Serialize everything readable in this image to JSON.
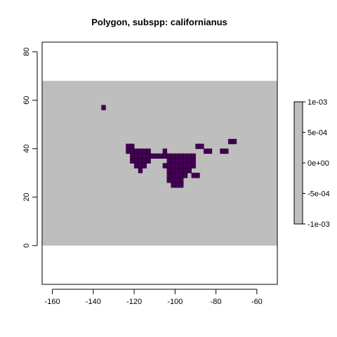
{
  "chart_data": {
    "type": "heatmap",
    "title": "Polygon, subspp: californianus",
    "xlim": [
      -165,
      -50
    ],
    "ylim": [
      -16,
      84
    ],
    "x_ticks": [
      -160,
      -140,
      -120,
      -100,
      -80,
      -60
    ],
    "y_ticks": [
      0,
      20,
      40,
      60,
      80
    ],
    "extent": {
      "xmin": -165,
      "xmax": -50,
      "ymin": 0,
      "ymax": 68
    },
    "background_color": "#bebebe",
    "fill_color": "#440154",
    "cell_size": 2,
    "cells": [
      [
        -136,
        56
      ],
      [
        -124,
        40
      ],
      [
        -122,
        40
      ],
      [
        -124,
        38
      ],
      [
        -122,
        38
      ],
      [
        -120,
        38
      ],
      [
        -118,
        38
      ],
      [
        -116,
        38
      ],
      [
        -114,
        38
      ],
      [
        -106,
        38
      ],
      [
        -122,
        36
      ],
      [
        -120,
        36
      ],
      [
        -118,
        36
      ],
      [
        -116,
        36
      ],
      [
        -114,
        36
      ],
      [
        -112,
        36
      ],
      [
        -110,
        36
      ],
      [
        -108,
        36
      ],
      [
        -106,
        36
      ],
      [
        -104,
        36
      ],
      [
        -102,
        36
      ],
      [
        -100,
        36
      ],
      [
        -98,
        36
      ],
      [
        -96,
        36
      ],
      [
        -94,
        36
      ],
      [
        -92,
        36
      ],
      [
        -122,
        34
      ],
      [
        -120,
        34
      ],
      [
        -118,
        34
      ],
      [
        -116,
        34
      ],
      [
        -114,
        34
      ],
      [
        -104,
        34
      ],
      [
        -102,
        34
      ],
      [
        -100,
        34
      ],
      [
        -98,
        34
      ],
      [
        -96,
        34
      ],
      [
        -94,
        34
      ],
      [
        -92,
        34
      ],
      [
        -120,
        32
      ],
      [
        -118,
        32
      ],
      [
        -116,
        32
      ],
      [
        -106,
        32
      ],
      [
        -104,
        32
      ],
      [
        -102,
        32
      ],
      [
        -100,
        32
      ],
      [
        -98,
        32
      ],
      [
        -96,
        32
      ],
      [
        -94,
        32
      ],
      [
        -92,
        32
      ],
      [
        -118,
        30
      ],
      [
        -104,
        30
      ],
      [
        -102,
        30
      ],
      [
        -100,
        30
      ],
      [
        -98,
        30
      ],
      [
        -96,
        30
      ],
      [
        -94,
        30
      ],
      [
        -92,
        28
      ],
      [
        -90,
        28
      ],
      [
        -104,
        28
      ],
      [
        -102,
        28
      ],
      [
        -100,
        28
      ],
      [
        -98,
        28
      ],
      [
        -96,
        28
      ],
      [
        -104,
        26
      ],
      [
        -102,
        26
      ],
      [
        -100,
        26
      ],
      [
        -98,
        26
      ],
      [
        -102,
        24
      ],
      [
        -100,
        24
      ],
      [
        -98,
        24
      ],
      [
        -90,
        40
      ],
      [
        -88,
        40
      ],
      [
        -86,
        38
      ],
      [
        -84,
        38
      ],
      [
        -78,
        38
      ],
      [
        -76,
        38
      ],
      [
        -74,
        42
      ],
      [
        -72,
        42
      ]
    ],
    "legend": {
      "position": "right",
      "ticks": [
        "1e-03",
        "5e-04",
        "0e+00",
        "-5e-04",
        "-1e-03"
      ],
      "color": "#bebebe"
    }
  }
}
